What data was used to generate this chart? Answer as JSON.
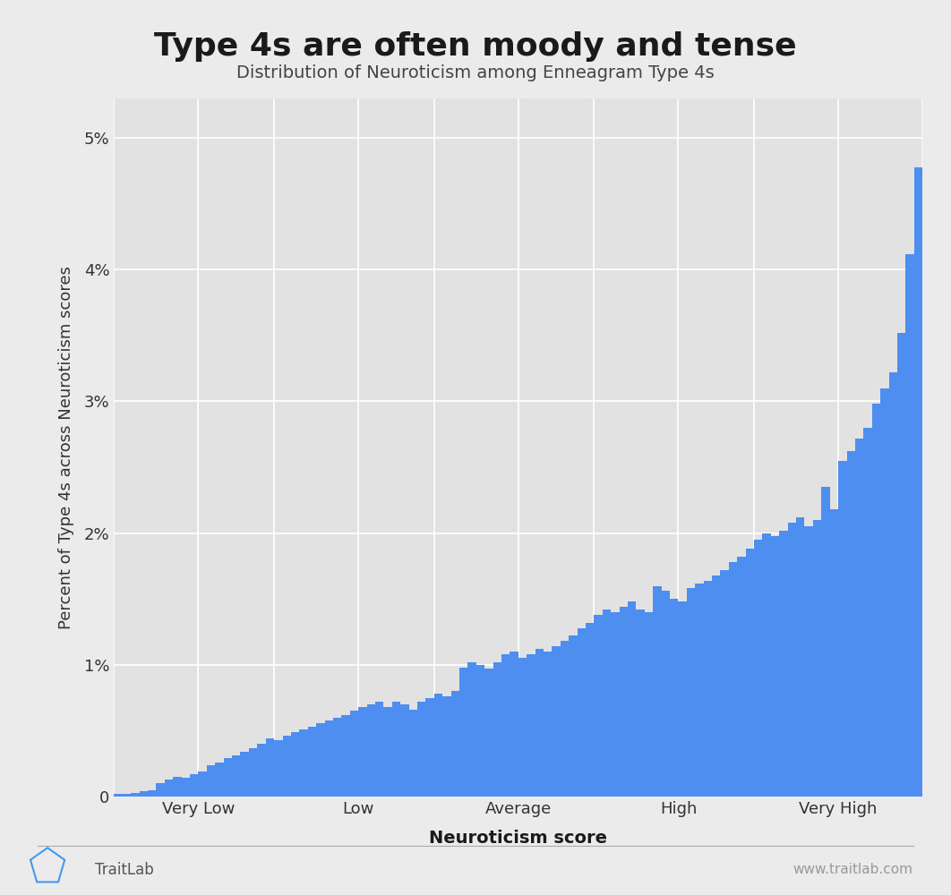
{
  "title": "Type 4s are often moody and tense",
  "subtitle": "Distribution of Neuroticism among Enneagram Type 4s",
  "xlabel": "Neuroticism score",
  "ylabel": "Percent of Type 4s across Neuroticism scores",
  "bar_color": "#4d8ef0",
  "background_color": "#ebebeb",
  "plot_bg_color": "#e2e2e2",
  "grid_color": "#ffffff",
  "xtick_labels": [
    "Very Low",
    "Low",
    "Average",
    "High",
    "Very High"
  ],
  "ytick_labels": [
    "0",
    "1%",
    "2%",
    "3%",
    "4%",
    "5%"
  ],
  "ytick_values": [
    0,
    1,
    2,
    3,
    4,
    5
  ],
  "ylim_max": 5.3,
  "footer_left": "TraitLab",
  "footer_right": "www.traitlab.com",
  "heights": [
    0.02,
    0.02,
    0.03,
    0.04,
    0.05,
    0.1,
    0.13,
    0.15,
    0.14,
    0.17,
    0.19,
    0.24,
    0.26,
    0.29,
    0.31,
    0.34,
    0.37,
    0.4,
    0.44,
    0.43,
    0.46,
    0.49,
    0.51,
    0.53,
    0.56,
    0.58,
    0.6,
    0.62,
    0.65,
    0.68,
    0.7,
    0.72,
    0.68,
    0.72,
    0.7,
    0.66,
    0.72,
    0.75,
    0.78,
    0.76,
    0.8,
    0.98,
    1.02,
    1.0,
    0.97,
    1.02,
    1.08,
    1.1,
    1.05,
    1.08,
    1.12,
    1.1,
    1.14,
    1.18,
    1.22,
    1.28,
    1.32,
    1.38,
    1.42,
    1.4,
    1.44,
    1.48,
    1.42,
    1.4,
    1.6,
    1.56,
    1.5,
    1.48,
    1.58,
    1.62,
    1.64,
    1.68,
    1.72,
    1.78,
    1.82,
    1.88,
    1.95,
    2.0,
    1.98,
    2.02,
    2.08,
    2.12,
    2.05,
    2.1,
    2.35,
    2.18,
    2.55,
    2.62,
    2.72,
    2.8,
    2.98,
    3.1,
    3.22,
    3.52,
    4.12,
    4.78
  ],
  "title_fontsize": 26,
  "subtitle_fontsize": 14,
  "axis_label_fontsize": 13,
  "tick_label_fontsize": 13
}
